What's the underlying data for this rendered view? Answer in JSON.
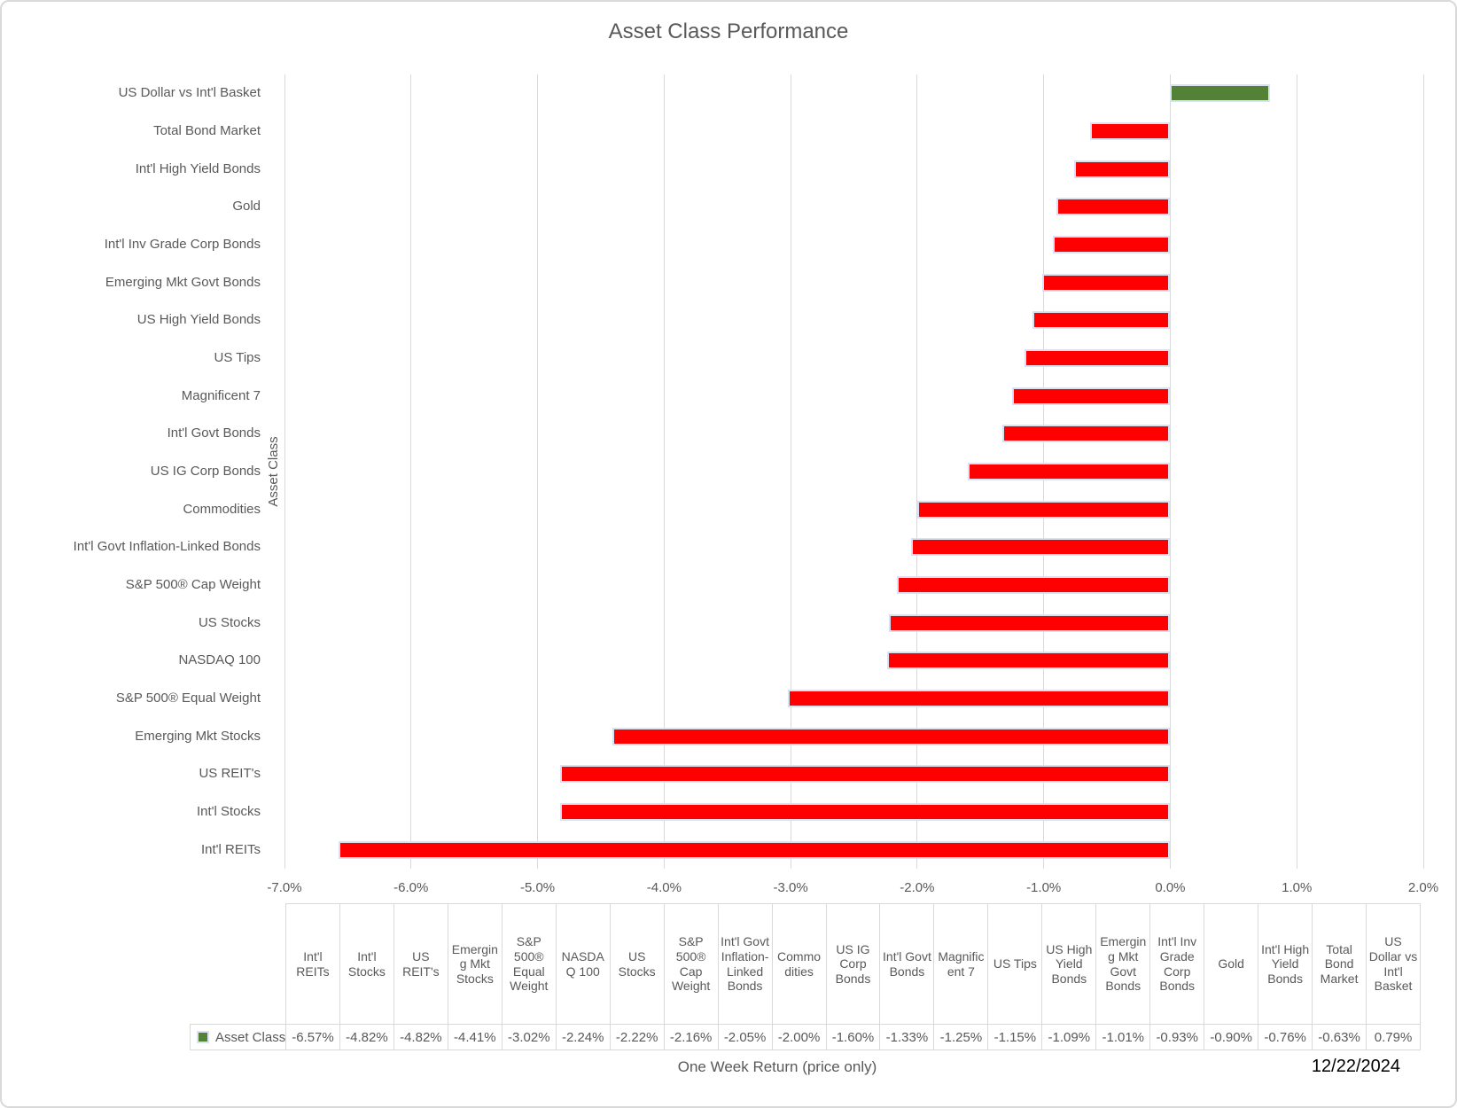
{
  "title": "Asset Class Performance",
  "y_axis_label": "Asset Class",
  "x_axis_label": "One Week Return (price only)",
  "legend_label": "Asset Class",
  "date": "12/22/2024",
  "colors": {
    "negative_bar": "#ff0000",
    "positive_bar": "#538135",
    "bar_border": "#d9e1f2",
    "gridline": "#d9d9d9",
    "axis_text": "#595959",
    "table_border": "#d9d9d9",
    "date_text": "#000000"
  },
  "chart_data": {
    "type": "bar",
    "orientation": "horizontal",
    "title": "Asset Class Performance",
    "xlabel": "One Week Return (price only)",
    "ylabel": "Asset Class",
    "series_name": "Asset Class",
    "xlim": [
      -7.0,
      2.0
    ],
    "grid": true,
    "legend_position": "bottom-left-of-table",
    "x_tick_labels": [
      "-7.0%",
      "-6.0%",
      "-5.0%",
      "-4.0%",
      "-3.0%",
      "-2.0%",
      "-1.0%",
      "0.0%",
      "1.0%",
      "2.0%"
    ],
    "categories_top_to_bottom": [
      "US Dollar vs Int'l Basket",
      "Total Bond Market",
      "Int'l High Yield Bonds",
      "Gold",
      "Int'l Inv Grade Corp Bonds",
      "Emerging Mkt Govt Bonds",
      "US High Yield Bonds",
      "US Tips",
      "Magnificent 7",
      "Int'l Govt Bonds",
      "US IG Corp Bonds",
      "Commodities",
      "Int'l Govt Inflation-Linked Bonds",
      "S&P 500®  Cap Weight",
      "US Stocks",
      "NASDAQ 100",
      "S&P 500® Equal Weight",
      "Emerging Mkt Stocks",
      "US REIT's",
      "Int'l Stocks",
      "Int'l REITs"
    ],
    "values_top_to_bottom_pct": [
      0.79,
      -0.63,
      -0.76,
      -0.9,
      -0.93,
      -1.01,
      -1.09,
      -1.15,
      -1.25,
      -1.33,
      -1.6,
      -2.0,
      -2.05,
      -2.16,
      -2.22,
      -2.24,
      -3.02,
      -4.41,
      -4.82,
      -4.82,
      -6.57
    ],
    "data_table": {
      "columns": [
        "Int'l REITs",
        "Int'l Stocks",
        "US REIT's",
        "Emerging Mkt Stocks",
        "S&P 500® Equal Weight",
        "NASDAQ 100",
        "US Stocks",
        "S&P 500® Cap Weight",
        "Int'l Govt Inflation-Linked Bonds",
        "Commodities",
        "US IG Corp Bonds",
        "Int'l Govt Bonds",
        "Magnificent 7",
        "US Tips",
        "US High Yield Bonds",
        "Emerging Mkt Govt Bonds",
        "Int'l Inv Grade Corp Bonds",
        "Gold",
        "Int'l High Yield Bonds",
        "Total Bond Market",
        "US Dollar vs Int'l Basket"
      ],
      "values": [
        "-6.57%",
        "-4.82%",
        "-4.82%",
        "-4.41%",
        "-3.02%",
        "-2.24%",
        "-2.22%",
        "-2.16%",
        "-2.05%",
        "-2.00%",
        "-1.60%",
        "-1.33%",
        "-1.25%",
        "-1.15%",
        "-1.09%",
        "-1.01%",
        "-0.93%",
        "-0.90%",
        "-0.76%",
        "-0.63%",
        "0.79%"
      ]
    }
  }
}
